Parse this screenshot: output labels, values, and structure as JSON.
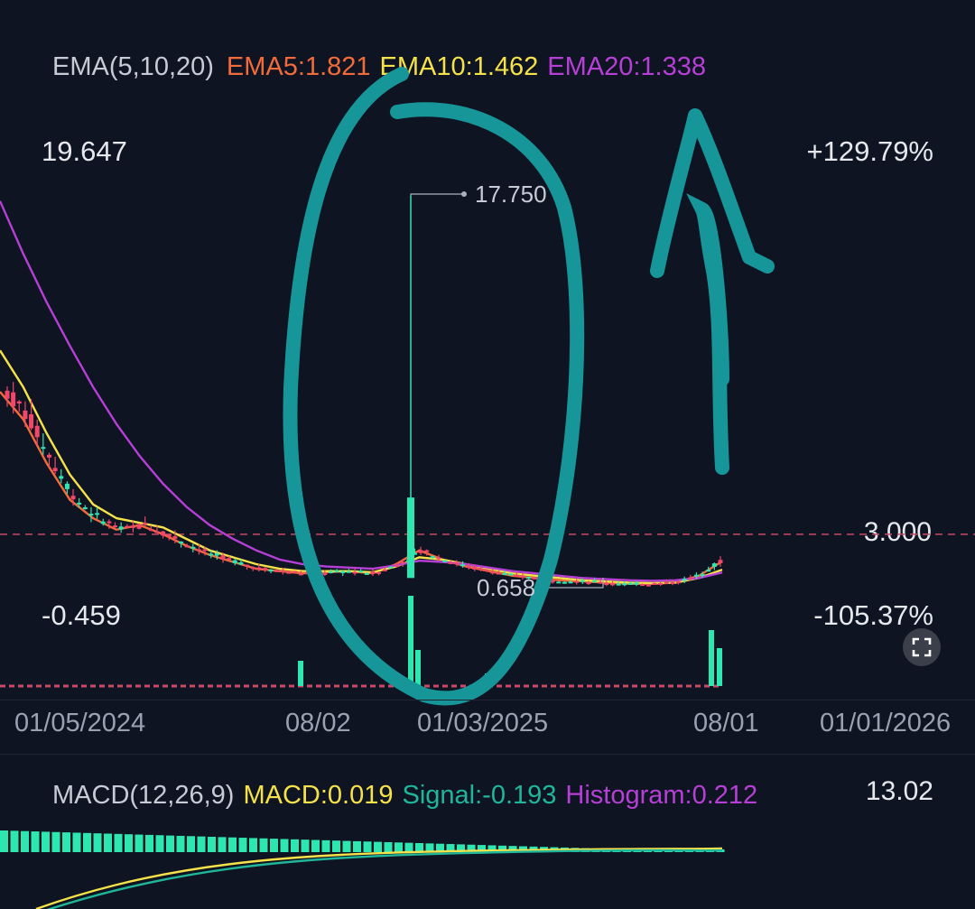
{
  "ema_legend": {
    "name": "EMA(5,10,20)",
    "ema5": "EMA5:1.821",
    "ema10": "EMA10:1.462",
    "ema20": "EMA20:1.338",
    "colors": {
      "label": "#c7cbd6",
      "ema5": "#f26b3a",
      "ema10": "#f5e24a",
      "ema20": "#b63fd6"
    }
  },
  "price_axis": {
    "top_value": "19.647",
    "bottom_value": "-0.459",
    "top_percent": "+129.79%",
    "bottom_percent": "-105.37%",
    "current_price": "3.000",
    "high_marker": "17.750",
    "low_marker": "0.658"
  },
  "x_axis": {
    "labels": [
      "01/05/2024",
      "08/02",
      "01/03/2025",
      "08/01",
      "01/01/2026"
    ]
  },
  "macd_legend": {
    "name": "MACD(12,26,9)",
    "macd": "MACD:0.019",
    "signal": "Signal:-0.193",
    "histogram": "Histogram:0.212",
    "scale_value": "13.02",
    "colors": {
      "label": "#c7cbd6",
      "macd": "#f5e24a",
      "signal": "#20b69a",
      "histogram": "#b63fd6"
    }
  },
  "icons": {
    "expand": "expand-icon"
  },
  "colors": {
    "up": "#2ee6b0",
    "down": "#f0476a",
    "annotation": "#17969a",
    "dashed_line": "#c84a64"
  },
  "chart_data": {
    "type": "candlestick",
    "y_range": [
      -0.459,
      19.647
    ],
    "current_price": 3.0,
    "period_high": 17.75,
    "period_low": 0.658,
    "x_labels": [
      "01/05/2024",
      "08/02",
      "01/03/2025",
      "08/01",
      "01/01/2026"
    ],
    "indicators": {
      "EMA5": 1.821,
      "EMA10": 1.462,
      "EMA20": 1.338,
      "MACD": 0.019,
      "Signal": -0.193,
      "Histogram": 0.212
    },
    "series": [
      {
        "name": "EMA5",
        "values": [
          9.2,
          8.0,
          6.1,
          4.5,
          3.7,
          3.2,
          3.4,
          3.0,
          2.5,
          2.1,
          1.8,
          1.5,
          1.4,
          1.3,
          1.35,
          1.4,
          1.3,
          1.7,
          2.3,
          1.9,
          1.6,
          1.4,
          1.2,
          1.1,
          1.0,
          0.95,
          0.9,
          0.85,
          0.85,
          0.9,
          1.2,
          1.821
        ]
      },
      {
        "name": "EMA10",
        "values": [
          11.0,
          9.4,
          7.4,
          5.6,
          4.3,
          3.7,
          3.5,
          3.3,
          2.8,
          2.3,
          2.0,
          1.7,
          1.5,
          1.4,
          1.4,
          1.4,
          1.35,
          1.6,
          2.0,
          1.9,
          1.7,
          1.5,
          1.3,
          1.2,
          1.1,
          1.0,
          0.95,
          0.9,
          0.88,
          0.9,
          1.1,
          1.462
        ]
      },
      {
        "name": "EMA20",
        "values": [
          17.5,
          15.2,
          13.1,
          11.2,
          9.4,
          7.8,
          6.4,
          5.2,
          4.2,
          3.4,
          2.8,
          2.3,
          1.9,
          1.7,
          1.6,
          1.55,
          1.5,
          1.65,
          1.85,
          1.8,
          1.7,
          1.55,
          1.4,
          1.3,
          1.2,
          1.1,
          1.05,
          1.0,
          0.98,
          1.0,
          1.1,
          1.338
        ]
      }
    ],
    "volume_highlights": [
      "08/02",
      "01/03/2025",
      "08/01"
    ]
  }
}
